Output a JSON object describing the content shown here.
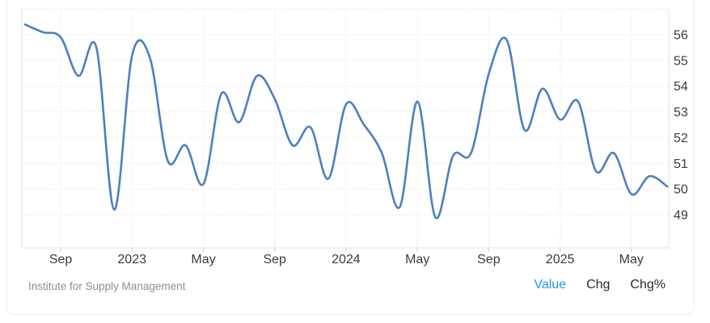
{
  "y_axis": {
    "labels": [
      "56",
      "55",
      "54",
      "53",
      "52",
      "51",
      "50",
      "49"
    ]
  },
  "x_axis": {
    "labels": [
      "Sep",
      "2023",
      "May",
      "Sep",
      "2024",
      "May",
      "Sep",
      "2025",
      "May"
    ]
  },
  "chart_data": {
    "type": "line",
    "title": "",
    "xlabel": "",
    "ylabel": "",
    "x": [
      "Jul 2022",
      "Aug 2022",
      "Sep 2022",
      "Oct 2022",
      "Nov 2022",
      "Dec 2022",
      "Jan 2023",
      "Feb 2023",
      "Mar 2023",
      "Apr 2023",
      "May 2023",
      "Jun 2023",
      "Jul 2023",
      "Aug 2023",
      "Sep 2023",
      "Oct 2023",
      "Nov 2023",
      "Dec 2023",
      "Jan 2024",
      "Feb 2024",
      "Mar 2024",
      "Apr 2024",
      "May 2024",
      "Jun 2024",
      "Jul 2024",
      "Aug 2024",
      "Sep 2024",
      "Oct 2024",
      "Nov 2024",
      "Dec 2024",
      "Jan 2025",
      "Feb 2025",
      "Mar 2025",
      "Apr 2025",
      "May 2025",
      "Jun 2025",
      "Jul 2025"
    ],
    "series": [
      {
        "name": "Value",
        "color": "#4c7fc0",
        "values": [
          56.4,
          56.1,
          55.9,
          54.4,
          55.5,
          49.2,
          55.2,
          55.1,
          51.1,
          51.7,
          50.2,
          53.7,
          52.6,
          54.4,
          53.5,
          51.7,
          52.4,
          50.4,
          53.3,
          52.5,
          51.4,
          49.3,
          53.4,
          48.9,
          51.3,
          51.4,
          54.5,
          55.8,
          52.3,
          53.9,
          52.7,
          53.4,
          50.7,
          51.4,
          49.8,
          50.5,
          50.1
        ]
      }
    ],
    "y_ticks": [
      56,
      55,
      54,
      53,
      52,
      51,
      50,
      49
    ],
    "x_tick_labels": [
      "Sep",
      "2023",
      "May",
      "Sep",
      "2024",
      "May",
      "Sep",
      "2025",
      "May"
    ],
    "ylim": [
      47.7,
      57.3
    ],
    "grid": "dotted",
    "legend": "none",
    "source": "Institute for Supply Management"
  },
  "footer": {
    "source": "Institute for Supply Management",
    "tabs": [
      {
        "label": "Value",
        "active": true
      },
      {
        "label": "Chg",
        "active": false
      },
      {
        "label": "Chg%",
        "active": false
      }
    ],
    "active_color": "#2196f3"
  },
  "colors": {
    "line": "#4c7fc0",
    "grid": "#dcdcdc",
    "plot_border": "#e2e2e2",
    "tick": "#cccccc",
    "axis_text": "#3b3b3b",
    "source_text": "#8e8e8e",
    "tab_text": "#2a2a2a",
    "tab_active": "#2196f3"
  }
}
